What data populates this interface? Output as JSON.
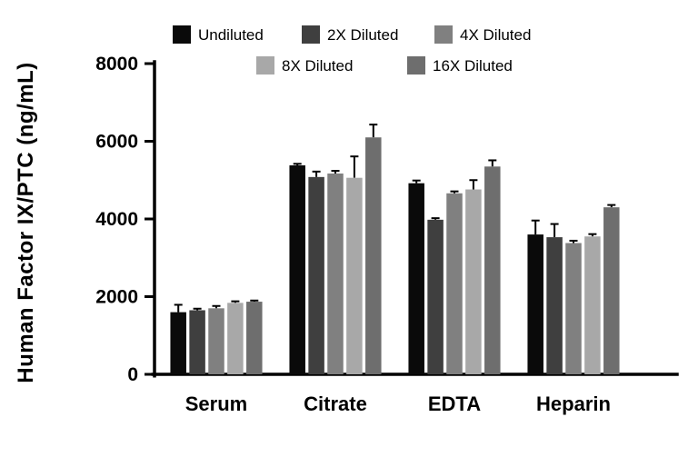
{
  "chart_data": {
    "type": "bar",
    "title": "",
    "xlabel": "",
    "ylabel": "Human Factor IX/PTC (ng/mL)",
    "ylim": [
      0,
      8000
    ],
    "yticks": [
      0,
      2000,
      4000,
      6000,
      8000
    ],
    "grid": false,
    "legend_position": "top",
    "categories": [
      "Serum",
      "Citrate",
      "EDTA",
      "Heparin"
    ],
    "series": [
      {
        "name": "Undiluted",
        "color": "#0a0a0a",
        "values": [
          1600,
          5380,
          4920,
          3600
        ],
        "errors": [
          190,
          40,
          70,
          360
        ]
      },
      {
        "name": "2X Diluted",
        "color": "#3f3f3f",
        "values": [
          1650,
          5080,
          3980,
          3530
        ],
        "errors": [
          40,
          140,
          40,
          340
        ]
      },
      {
        "name": "4X Diluted",
        "color": "#808080",
        "values": [
          1700,
          5170,
          4660,
          3380
        ],
        "errors": [
          60,
          70,
          50,
          60
        ]
      },
      {
        "name": "8X Diluted",
        "color": "#a8a8a8",
        "values": [
          1840,
          5060,
          4760,
          3550
        ],
        "errors": [
          40,
          550,
          240,
          60
        ]
      },
      {
        "name": "16X Diluted",
        "color": "#6e6e6e",
        "values": [
          1870,
          6100,
          5350,
          4300
        ],
        "errors": [
          30,
          330,
          160,
          60
        ]
      }
    ]
  }
}
